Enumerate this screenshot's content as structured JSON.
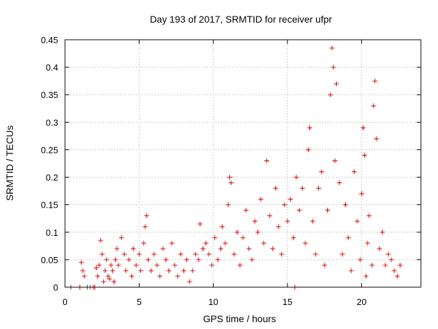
{
  "chart_data": {
    "type": "scatter",
    "title": "Day 193 of 2017, SRMTID for receiver ufpr",
    "xlabel": "GPS time / hours",
    "ylabel": "SRMTID / TECUs",
    "xlim": [
      0,
      24
    ],
    "ylim": [
      0,
      0.45
    ],
    "x_ticks": [
      0,
      5,
      10,
      15,
      20
    ],
    "x_tick_labels": [
      "0",
      "5",
      "10",
      "15",
      "20"
    ],
    "y_ticks": [
      0,
      0.05,
      0.1,
      0.15,
      0.2,
      0.25,
      0.3,
      0.35,
      0.4,
      0.45
    ],
    "y_tick_labels": [
      "0",
      "0.05",
      "0.1",
      "0.15",
      "0.2",
      "0.25",
      "0.3",
      "0.35",
      "0.4",
      "0.45"
    ],
    "grid": true,
    "marker": "+",
    "color": "#ff0000",
    "series": [
      {
        "name": "SRMTID",
        "x": [
          0.4,
          1.0,
          1.1,
          1.2,
          1.3,
          1.5,
          1.7,
          1.9,
          2.0,
          2.1,
          2.2,
          2.3,
          2.4,
          2.5,
          2.6,
          2.7,
          2.8,
          2.9,
          3.0,
          3.1,
          3.2,
          3.3,
          3.4,
          3.5,
          3.6,
          3.8,
          4.0,
          4.1,
          4.3,
          4.5,
          4.6,
          4.8,
          5.0,
          5.1,
          5.3,
          5.4,
          5.5,
          5.6,
          5.8,
          6.0,
          6.2,
          6.4,
          6.6,
          6.8,
          7.0,
          7.2,
          7.4,
          7.6,
          7.8,
          8.0,
          8.2,
          8.4,
          8.6,
          8.8,
          9.0,
          9.1,
          9.3,
          9.5,
          9.7,
          9.9,
          10.1,
          10.3,
          10.5,
          10.6,
          10.8,
          11.0,
          11.1,
          11.2,
          11.4,
          11.6,
          11.8,
          12.0,
          12.2,
          12.4,
          12.6,
          12.8,
          13.0,
          13.2,
          13.4,
          13.6,
          13.8,
          14.0,
          14.2,
          14.4,
          14.6,
          14.8,
          15.0,
          15.2,
          15.4,
          15.5,
          15.6,
          15.8,
          16.0,
          16.2,
          16.4,
          16.5,
          16.7,
          16.9,
          17.1,
          17.3,
          17.5,
          17.7,
          17.9,
          18.0,
          18.1,
          18.2,
          18.3,
          18.5,
          18.7,
          18.9,
          19.1,
          19.3,
          19.5,
          19.7,
          19.9,
          20.0,
          20.1,
          20.2,
          20.3,
          20.4,
          20.5,
          20.7,
          20.8,
          20.9,
          21.0,
          21.2,
          21.4,
          21.6,
          21.8,
          22.0,
          22.2,
          22.4,
          22.6
        ],
        "y": [
          0.0,
          0.0,
          0.045,
          0.03,
          0.02,
          0.0,
          0.0,
          0.0,
          0.0,
          0.035,
          0.02,
          0.04,
          0.085,
          0.06,
          0.01,
          0.03,
          0.05,
          0.02,
          0.015,
          0.04,
          0.03,
          0.01,
          0.05,
          0.07,
          0.04,
          0.09,
          0.06,
          0.03,
          0.05,
          0.02,
          0.07,
          0.04,
          0.06,
          0.03,
          0.08,
          0.11,
          0.13,
          0.05,
          0.03,
          0.06,
          0.04,
          0.02,
          0.07,
          0.05,
          0.03,
          0.08,
          0.04,
          0.02,
          0.06,
          0.03,
          0.05,
          0.01,
          0.03,
          0.06,
          0.05,
          0.115,
          0.07,
          0.08,
          0.06,
          0.04,
          0.09,
          0.05,
          0.07,
          0.11,
          0.08,
          0.15,
          0.2,
          0.19,
          0.06,
          0.1,
          0.04,
          0.09,
          0.14,
          0.07,
          0.05,
          0.12,
          0.1,
          0.16,
          0.08,
          0.23,
          0.13,
          0.07,
          0.18,
          0.11,
          0.06,
          0.15,
          0.12,
          0.16,
          0.09,
          0.0,
          0.2,
          0.14,
          0.18,
          0.08,
          0.25,
          0.29,
          0.12,
          0.06,
          0.18,
          0.21,
          0.04,
          0.14,
          0.35,
          0.435,
          0.4,
          0.23,
          0.37,
          0.19,
          0.06,
          0.15,
          0.09,
          0.03,
          0.21,
          0.12,
          0.05,
          0.17,
          0.29,
          0.24,
          0.02,
          0.08,
          0.13,
          0.04,
          0.33,
          0.375,
          0.27,
          0.07,
          0.1,
          0.04,
          0.06,
          0.05,
          0.03,
          0.02,
          0.04
        ]
      }
    ]
  }
}
